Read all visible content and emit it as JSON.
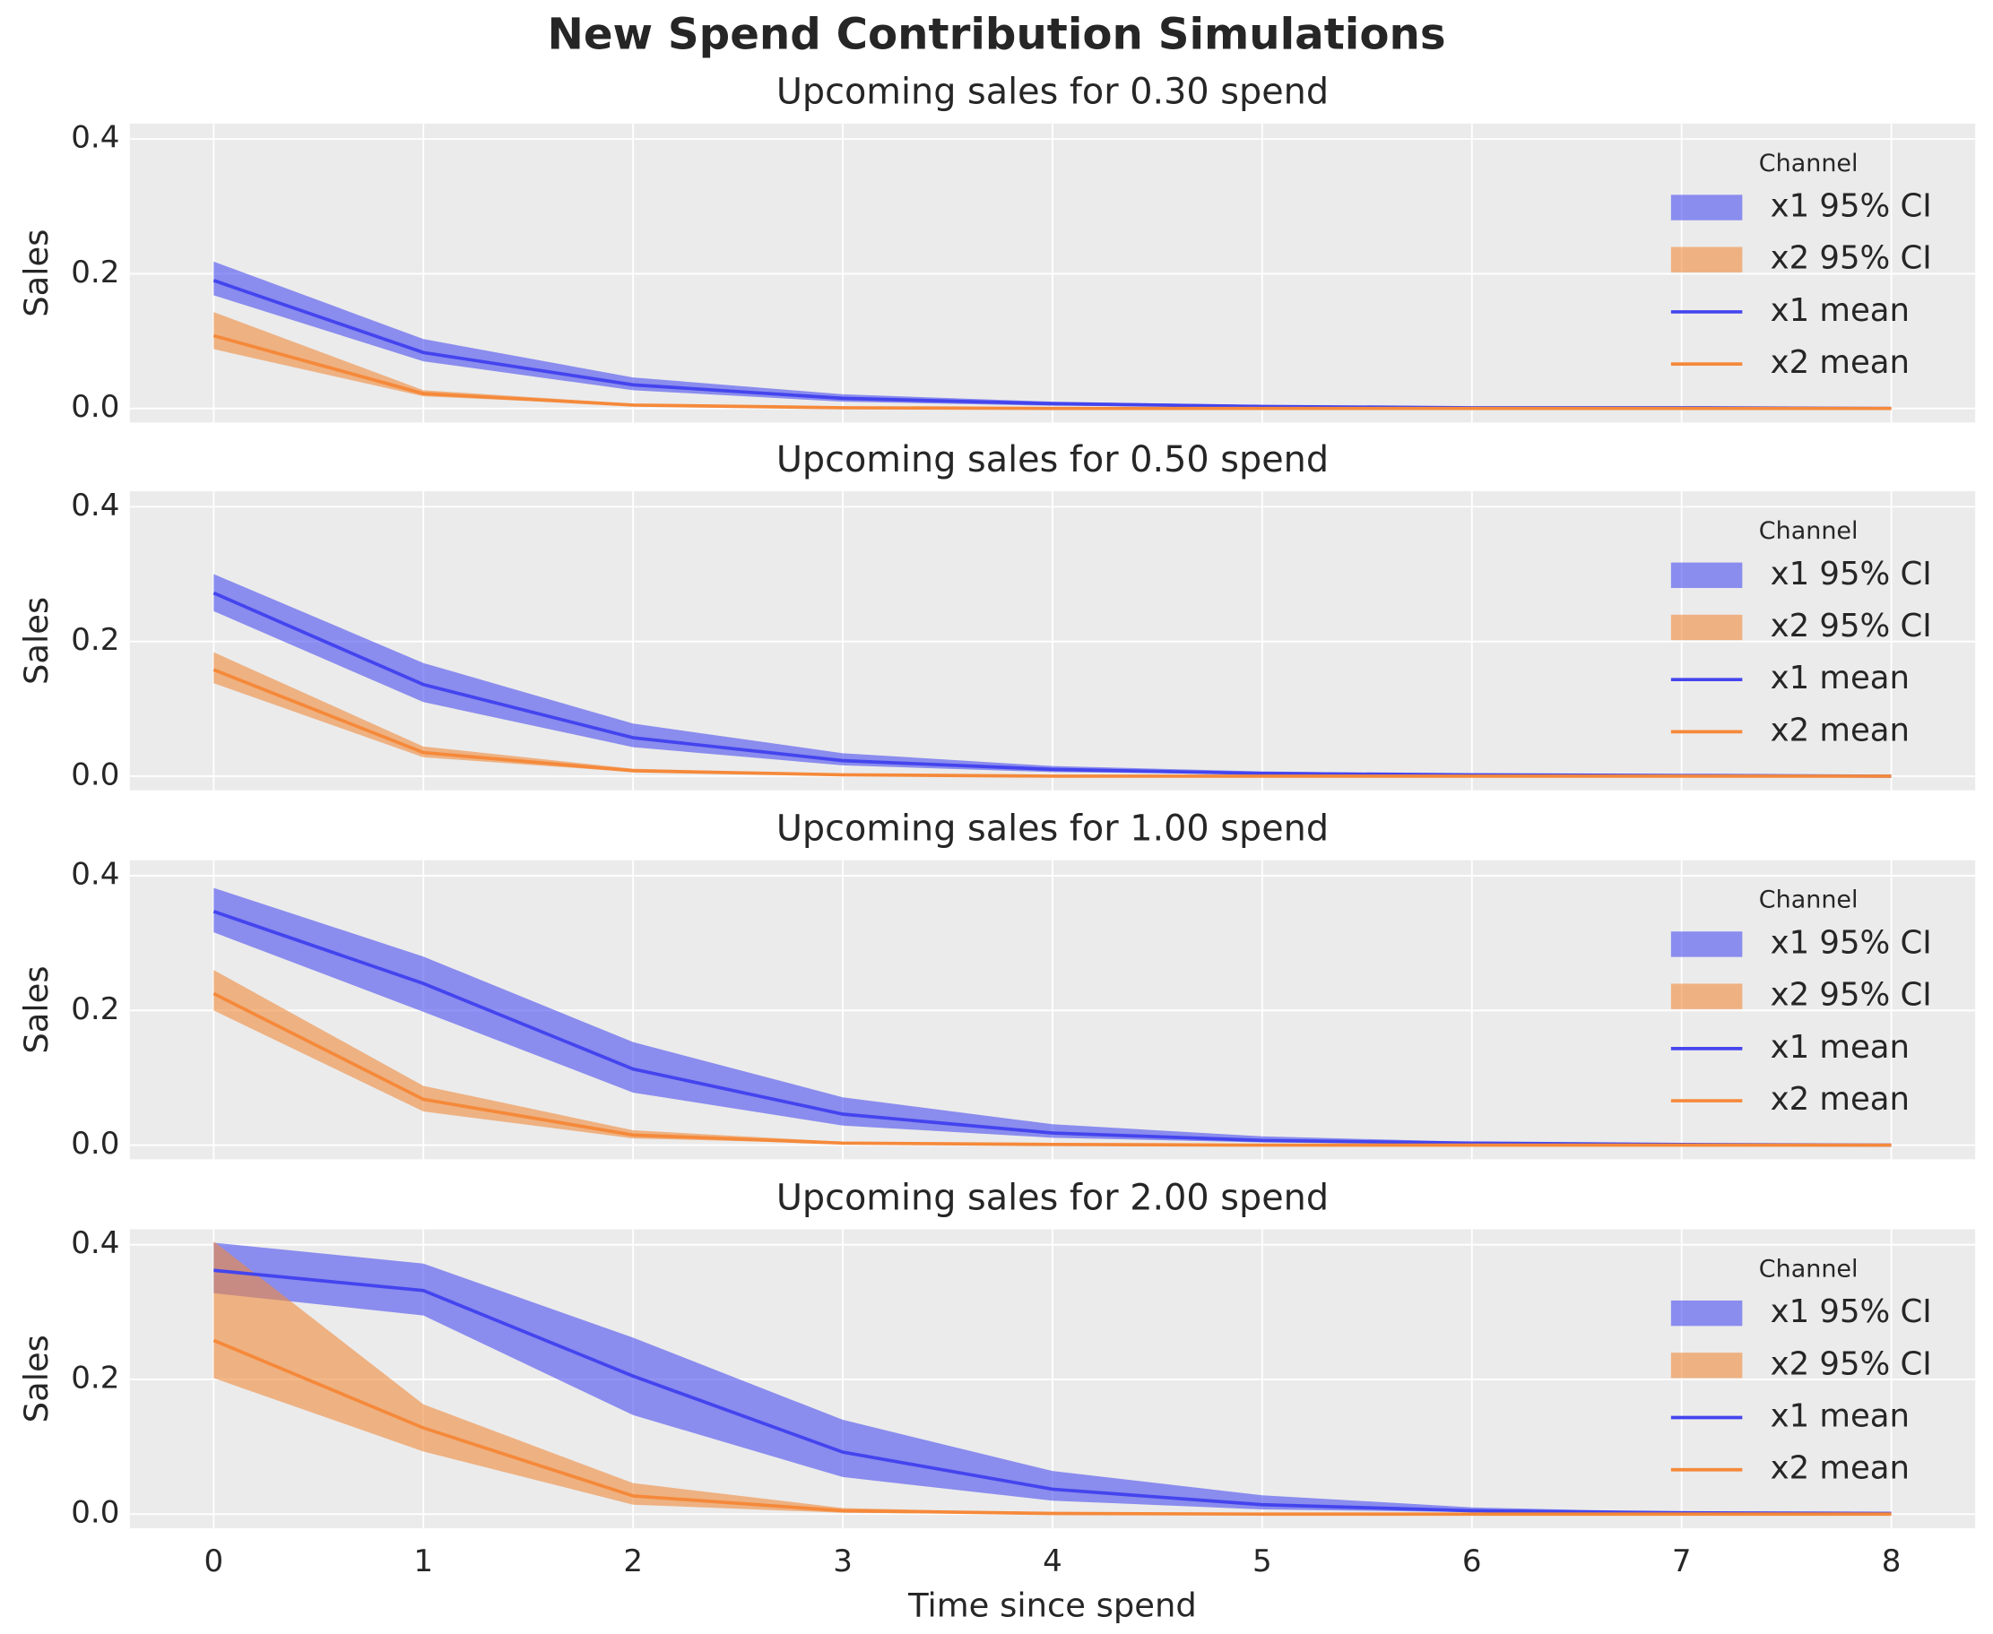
{
  "title": "New Spend Contribution Simulations",
  "chart_data": [
    {
      "type": "line",
      "title": "Upcoming sales for 0.30 spend",
      "ylabel": "Sales",
      "legend_title": "Channel",
      "legend": "upper right",
      "grid": true,
      "x": [
        0,
        1,
        2,
        3,
        4,
        5,
        6,
        7,
        8
      ],
      "xlim": [
        -0.4,
        8.4
      ],
      "xticks": [
        0,
        1,
        2,
        3,
        4,
        5,
        6,
        7,
        8
      ],
      "ylim": [
        -0.021,
        0.423
      ],
      "yticks": [
        {
          "value": 0,
          "label": "0.0"
        },
        {
          "value": 0.2,
          "label": "0.2"
        },
        {
          "value": 0.4,
          "label": "0.4"
        }
      ],
      "series": [
        {
          "name": "x1 95% CI",
          "kind": "band",
          "color": "#4a4cf0",
          "lower": [
            0.168,
            0.07,
            0.027,
            0.01,
            0.004,
            0.002,
            0.001,
            0,
            0
          ],
          "upper": [
            0.218,
            0.103,
            0.046,
            0.021,
            0.01,
            0.005,
            0.002,
            0.001,
            0.001
          ]
        },
        {
          "name": "x2 95% CI",
          "kind": "band",
          "color": "#f08a3c",
          "lower": [
            0.088,
            0.018,
            0.004,
            0.001,
            0,
            0,
            0,
            0,
            0
          ],
          "upper": [
            0.143,
            0.027,
            0.007,
            0.002,
            0.001,
            0,
            0,
            0,
            0
          ]
        },
        {
          "name": "x1 mean",
          "kind": "line",
          "color": "#4444ee",
          "values": [
            0.19,
            0.083,
            0.035,
            0.015,
            0.007,
            0.003,
            0.001,
            0.001,
            0
          ]
        },
        {
          "name": "x2 mean",
          "kind": "line",
          "color": "#f5893a",
          "values": [
            0.108,
            0.022,
            0.005,
            0.001,
            0,
            0,
            0,
            0,
            0
          ]
        }
      ]
    },
    {
      "type": "line",
      "title": "Upcoming sales for 0.50 spend",
      "ylabel": "Sales",
      "legend_title": "Channel",
      "legend": "upper right",
      "grid": true,
      "x": [
        0,
        1,
        2,
        3,
        4,
        5,
        6,
        7,
        8
      ],
      "xlim": [
        -0.4,
        8.4
      ],
      "xticks": [
        0,
        1,
        2,
        3,
        4,
        5,
        6,
        7,
        8
      ],
      "ylim": [
        -0.021,
        0.423
      ],
      "yticks": [
        {
          "value": 0,
          "label": "0.0"
        },
        {
          "value": 0.2,
          "label": "0.2"
        },
        {
          "value": 0.4,
          "label": "0.4"
        }
      ],
      "series": [
        {
          "name": "x1 95% CI",
          "kind": "band",
          "color": "#4a4cf0",
          "lower": [
            0.245,
            0.11,
            0.043,
            0.016,
            0.006,
            0.003,
            0.001,
            0,
            0
          ],
          "upper": [
            0.3,
            0.168,
            0.078,
            0.034,
            0.015,
            0.007,
            0.003,
            0.001,
            0.001
          ]
        },
        {
          "name": "x2 95% CI",
          "kind": "band",
          "color": "#f08a3c",
          "lower": [
            0.138,
            0.028,
            0.006,
            0.001,
            0,
            0,
            0,
            0,
            0
          ],
          "upper": [
            0.184,
            0.044,
            0.011,
            0.003,
            0.001,
            0,
            0,
            0,
            0
          ]
        },
        {
          "name": "x1 mean",
          "kind": "line",
          "color": "#4444ee",
          "values": [
            0.272,
            0.136,
            0.057,
            0.023,
            0.01,
            0.004,
            0.002,
            0.001,
            0
          ]
        },
        {
          "name": "x2 mean",
          "kind": "line",
          "color": "#f5893a",
          "values": [
            0.158,
            0.035,
            0.008,
            0.002,
            0,
            0,
            0,
            0,
            0
          ]
        }
      ]
    },
    {
      "type": "line",
      "title": "Upcoming sales for 1.00 spend",
      "ylabel": "Sales",
      "legend_title": "Channel",
      "legend": "upper right",
      "grid": true,
      "x": [
        0,
        1,
        2,
        3,
        4,
        5,
        6,
        7,
        8
      ],
      "xlim": [
        -0.4,
        8.4
      ],
      "xticks": [
        0,
        1,
        2,
        3,
        4,
        5,
        6,
        7,
        8
      ],
      "ylim": [
        -0.021,
        0.423
      ],
      "yticks": [
        {
          "value": 0,
          "label": "0.0"
        },
        {
          "value": 0.2,
          "label": "0.2"
        },
        {
          "value": 0.4,
          "label": "0.4"
        }
      ],
      "series": [
        {
          "name": "x1 95% CI",
          "kind": "band",
          "color": "#4a4cf0",
          "lower": [
            0.316,
            0.198,
            0.078,
            0.029,
            0.011,
            0.004,
            0.001,
            0,
            0
          ],
          "upper": [
            0.382,
            0.28,
            0.153,
            0.071,
            0.031,
            0.013,
            0.005,
            0.002,
            0.001
          ]
        },
        {
          "name": "x2 95% CI",
          "kind": "band",
          "color": "#f08a3c",
          "lower": [
            0.2,
            0.05,
            0.01,
            0.002,
            0,
            0,
            0,
            0,
            0
          ],
          "upper": [
            0.26,
            0.088,
            0.022,
            0.005,
            0.001,
            0,
            0,
            0,
            0
          ]
        },
        {
          "name": "x1 mean",
          "kind": "line",
          "color": "#4444ee",
          "values": [
            0.347,
            0.24,
            0.113,
            0.046,
            0.018,
            0.007,
            0.003,
            0.001,
            0
          ]
        },
        {
          "name": "x2 mean",
          "kind": "line",
          "color": "#f5893a",
          "values": [
            0.225,
            0.068,
            0.015,
            0.003,
            0.001,
            0,
            0,
            0,
            0
          ]
        }
      ]
    },
    {
      "type": "line",
      "title": "Upcoming sales for 2.00 spend",
      "ylabel": "Sales",
      "xlabel": "Time since spend",
      "legend_title": "Channel",
      "legend": "upper right",
      "grid": true,
      "x": [
        0,
        1,
        2,
        3,
        4,
        5,
        6,
        7,
        8
      ],
      "xlim": [
        -0.4,
        8.4
      ],
      "xticks": [
        0,
        1,
        2,
        3,
        4,
        5,
        6,
        7,
        8
      ],
      "ylim": [
        -0.021,
        0.423
      ],
      "yticks": [
        {
          "value": 0,
          "label": "0.0"
        },
        {
          "value": 0.2,
          "label": "0.2"
        },
        {
          "value": 0.4,
          "label": "0.4"
        }
      ],
      "series": [
        {
          "name": "x1 95% CI",
          "kind": "band",
          "color": "#4a4cf0",
          "lower": [
            0.328,
            0.295,
            0.147,
            0.055,
            0.02,
            0.007,
            0.003,
            0.001,
            0
          ],
          "upper": [
            0.403,
            0.372,
            0.262,
            0.14,
            0.064,
            0.028,
            0.01,
            0.003,
            0.001
          ]
        },
        {
          "name": "x2 95% CI",
          "kind": "band",
          "color": "#f08a3c",
          "lower": [
            0.202,
            0.093,
            0.014,
            0.002,
            0,
            0,
            0,
            0,
            0
          ],
          "upper": [
            0.405,
            0.163,
            0.046,
            0.009,
            0.002,
            0.001,
            0,
            0,
            0
          ]
        },
        {
          "name": "x1 mean",
          "kind": "line",
          "color": "#4444ee",
          "values": [
            0.362,
            0.332,
            0.205,
            0.092,
            0.037,
            0.014,
            0.005,
            0.002,
            0.001
          ]
        },
        {
          "name": "x2 mean",
          "kind": "line",
          "color": "#f5893a",
          "values": [
            0.258,
            0.128,
            0.027,
            0.005,
            0.001,
            0,
            0,
            0,
            0
          ]
        }
      ]
    }
  ]
}
